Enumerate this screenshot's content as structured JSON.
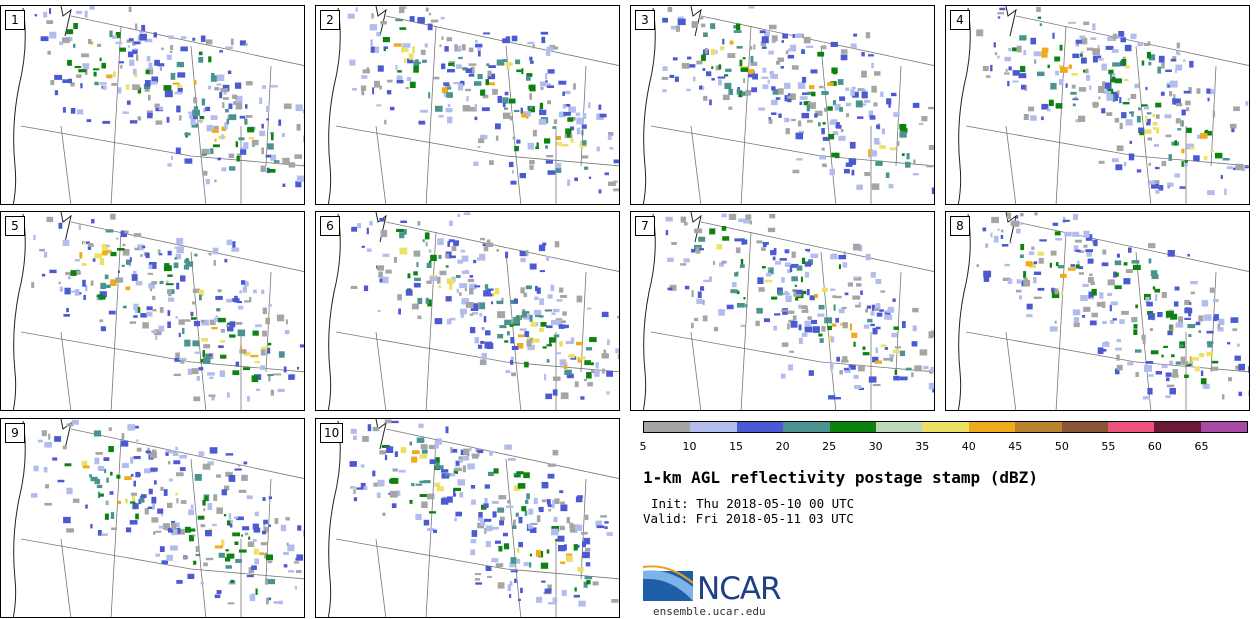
{
  "panels": [
    "1",
    "2",
    "3",
    "4",
    "5",
    "6",
    "7",
    "8",
    "9",
    "10"
  ],
  "colorbar": {
    "ticks": [
      "5",
      "10",
      "15",
      "20",
      "25",
      "30",
      "35",
      "40",
      "45",
      "50",
      "55",
      "60",
      "65"
    ],
    "colors": [
      "#a5a5a5",
      "#b3bded",
      "#4b5ad2",
      "#4a938f",
      "#0e820f",
      "#bcd9bb",
      "#ece166",
      "#eeab1b",
      "#b9822d",
      "#8b5636",
      "#ee5380",
      "#6a1939",
      "#a84aa6"
    ]
  },
  "title": "1-km AGL reflectivity postage stamp (dBZ)",
  "init": "Init: Thu 2018-05-10 00 UTC",
  "valid": "Valid: Fri 2018-05-11 03 UTC",
  "logo": {
    "text": "NCAR",
    "site": "ensemble.ucar.edu",
    "color": "#1f3f86"
  }
}
